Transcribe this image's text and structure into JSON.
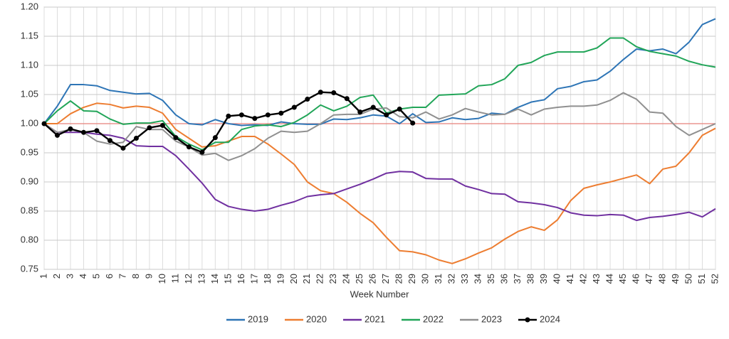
{
  "chart_data": {
    "type": "line",
    "x_label": "Week Number",
    "x": [
      1,
      2,
      3,
      4,
      5,
      6,
      7,
      8,
      9,
      10,
      11,
      12,
      13,
      14,
      15,
      16,
      17,
      18,
      19,
      20,
      21,
      22,
      23,
      24,
      25,
      26,
      27,
      28,
      29,
      30,
      31,
      32,
      33,
      34,
      35,
      36,
      37,
      38,
      39,
      40,
      41,
      42,
      43,
      44,
      45,
      46,
      47,
      48,
      49,
      50,
      51,
      52
    ],
    "xlim": [
      1,
      52
    ],
    "ylim": [
      0.75,
      1.2
    ],
    "yticks": [
      {
        "value": 0.75,
        "label": "0.75"
      },
      {
        "value": 0.8,
        "label": "0.80"
      },
      {
        "value": 0.85,
        "label": "0.85"
      },
      {
        "value": 0.9,
        "label": "0.90"
      },
      {
        "value": 0.95,
        "label": "0.95"
      },
      {
        "value": 1,
        "label": "1.00"
      },
      {
        "value": 1.05,
        "label": "1.05"
      },
      {
        "value": 1.1,
        "label": "1.10"
      },
      {
        "value": 1.15,
        "label": "1.15"
      },
      {
        "value": 1.2,
        "label": "1.20"
      }
    ],
    "grid": true,
    "reference_line": {
      "value": 1,
      "color": "#e8817a"
    },
    "legend": "bottom",
    "series": [
      {
        "name": "2019",
        "color": "#2e75b6",
        "markers": false,
        "values": [
          1.0,
          1.03,
          1.067,
          1.067,
          1.065,
          1.057,
          1.054,
          1.051,
          1.052,
          1.04,
          1.015,
          1.0,
          0.998,
          1.007,
          1.0,
          0.997,
          0.998,
          0.997,
          1.003,
          1.0,
          0.999,
          0.999,
          1.008,
          1.007,
          1.01,
          1.015,
          1.013,
          1.0,
          1.017,
          1.002,
          1.003,
          1.01,
          1.007,
          1.009,
          1.018,
          1.016,
          1.028,
          1.037,
          1.041,
          1.06,
          1.064,
          1.072,
          1.075,
          1.09,
          1.11,
          1.128,
          1.125,
          1.128,
          1.12,
          1.14,
          1.17,
          1.18
        ]
      },
      {
        "name": "2020",
        "color": "#ed7d31",
        "markers": false,
        "values": [
          1.0,
          1.0,
          1.017,
          1.028,
          1.035,
          1.033,
          1.027,
          1.03,
          1.028,
          1.018,
          0.99,
          0.975,
          0.96,
          0.962,
          0.97,
          0.978,
          0.978,
          0.965,
          0.948,
          0.93,
          0.9,
          0.885,
          0.88,
          0.865,
          0.846,
          0.83,
          0.805,
          0.782,
          0.78,
          0.775,
          0.766,
          0.76,
          0.768,
          0.778,
          0.787,
          0.802,
          0.815,
          0.823,
          0.817,
          0.835,
          0.868,
          0.889,
          0.895,
          0.9,
          0.906,
          0.912,
          0.897,
          0.922,
          0.927,
          0.95,
          0.98,
          0.992
        ]
      },
      {
        "name": "2021",
        "color": "#7030a0",
        "markers": false,
        "values": [
          1.0,
          0.985,
          0.985,
          0.985,
          0.982,
          0.98,
          0.975,
          0.962,
          0.961,
          0.961,
          0.945,
          0.922,
          0.898,
          0.87,
          0.858,
          0.853,
          0.85,
          0.853,
          0.86,
          0.866,
          0.875,
          0.878,
          0.88,
          0.888,
          0.896,
          0.905,
          0.915,
          0.918,
          0.917,
          0.906,
          0.905,
          0.905,
          0.893,
          0.887,
          0.88,
          0.879,
          0.866,
          0.864,
          0.861,
          0.856,
          0.847,
          0.843,
          0.842,
          0.844,
          0.843,
          0.834,
          0.839,
          0.841,
          0.844,
          0.848,
          0.84,
          0.854
        ]
      },
      {
        "name": "2022",
        "color": "#21a558",
        "markers": false,
        "values": [
          1.0,
          1.022,
          1.039,
          1.022,
          1.021,
          1.008,
          0.999,
          1.001,
          1.001,
          1.005,
          0.978,
          0.965,
          0.955,
          0.968,
          0.968,
          0.99,
          0.996,
          0.998,
          0.995,
          1.002,
          1.015,
          1.032,
          1.022,
          1.03,
          1.045,
          1.049,
          1.018,
          1.025,
          1.028,
          1.028,
          1.049,
          1.05,
          1.051,
          1.065,
          1.067,
          1.077,
          1.1,
          1.105,
          1.117,
          1.123,
          1.123,
          1.123,
          1.13,
          1.147,
          1.147,
          1.132,
          1.124,
          1.12,
          1.116,
          1.107,
          1.101,
          1.097
        ]
      },
      {
        "name": "2023",
        "color": "#909090",
        "markers": false,
        "values": [
          1.0,
          0.985,
          0.99,
          0.985,
          0.97,
          0.965,
          0.968,
          0.995,
          0.99,
          0.99,
          0.97,
          0.96,
          0.946,
          0.949,
          0.937,
          0.945,
          0.957,
          0.975,
          0.987,
          0.985,
          0.987,
          1.0,
          1.015,
          1.016,
          1.016,
          1.025,
          1.027,
          1.012,
          1.01,
          1.02,
          1.008,
          1.015,
          1.026,
          1.02,
          1.015,
          1.016,
          1.025,
          1.015,
          1.025,
          1.028,
          1.03,
          1.03,
          1.032,
          1.04,
          1.053,
          1.042,
          1.02,
          1.018,
          0.995,
          0.98,
          0.99,
          1.0
        ]
      },
      {
        "name": "2024",
        "color": "#000000",
        "markers": true,
        "values": [
          1.0,
          0.98,
          0.991,
          0.985,
          0.988,
          0.971,
          0.958,
          0.975,
          0.993,
          0.997,
          0.976,
          0.96,
          0.951,
          0.976,
          1.013,
          1.015,
          1.009,
          1.015,
          1.018,
          1.028,
          1.042,
          1.054,
          1.053,
          1.043,
          1.02,
          1.028,
          1.015,
          1.025,
          1.001,
          null,
          null,
          null,
          null,
          null,
          null,
          null,
          null,
          null,
          null,
          null,
          null,
          null,
          null,
          null,
          null,
          null,
          null,
          null,
          null,
          null,
          null,
          null
        ]
      }
    ]
  }
}
